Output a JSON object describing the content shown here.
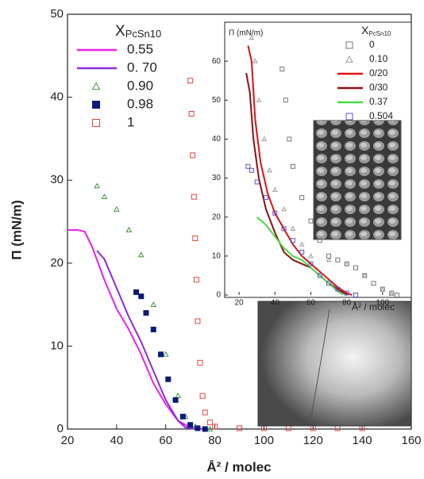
{
  "chart_data": [
    {
      "type": "line",
      "xlabel": "Å² / molec",
      "ylabel": "Π (mN/m)",
      "legend_title_symbol": "X",
      "legend_title_subscript": "PcSn10",
      "xlim": [
        20,
        160
      ],
      "xticks": [
        20,
        40,
        60,
        80,
        100,
        120,
        140,
        160
      ],
      "ylim": [
        0,
        50
      ],
      "yticks": [
        0,
        10,
        20,
        30,
        40,
        50
      ],
      "series": [
        {
          "name": "0.55",
          "color": "#ee1ee8",
          "style": "line",
          "x": [
            20,
            24,
            27,
            30,
            35,
            40,
            45,
            50,
            55,
            60,
            65,
            70,
            75
          ],
          "values": [
            24,
            24,
            23.8,
            22,
            18,
            14.5,
            12,
            9,
            5.5,
            3,
            1,
            0.2,
            0
          ]
        },
        {
          "name": "0. 70",
          "color": "#8a2be2",
          "style": "line",
          "x": [
            32,
            35,
            40,
            45,
            50,
            55,
            60,
            65,
            68,
            72
          ],
          "values": [
            21.5,
            20.5,
            17,
            13.5,
            10.5,
            7,
            3.5,
            1,
            0.2,
            0
          ]
        },
        {
          "name": "0.90",
          "color": "#3a9a3a",
          "style": "triangle",
          "x": [
            32,
            35,
            40,
            45,
            50,
            55,
            60,
            65,
            68,
            72,
            78
          ],
          "values": [
            29.3,
            28,
            26.5,
            24,
            21,
            15,
            9,
            4,
            1.5,
            0.3,
            0
          ]
        },
        {
          "name": "0.98",
          "color": "#0b1a78",
          "style": "square",
          "x": [
            48,
            50,
            52,
            55,
            58,
            61,
            64,
            67,
            70,
            73,
            76
          ],
          "values": [
            16.5,
            16,
            14,
            12,
            9,
            6,
            3.5,
            1.5,
            0.5,
            0.1,
            0
          ]
        },
        {
          "name": "1",
          "color": "#e8403a",
          "style": "open-square",
          "x": [
            70,
            70.5,
            71,
            71.5,
            72,
            72.5,
            73,
            74,
            75,
            76,
            78,
            80,
            90,
            100,
            110,
            120,
            130,
            140
          ],
          "values": [
            42,
            38,
            33,
            28,
            23,
            18,
            13,
            8,
            4,
            2,
            0.8,
            0.3,
            0.1,
            0.1,
            0.1,
            0.1,
            0.1,
            0.1
          ]
        }
      ]
    },
    {
      "type": "line",
      "xlabel": "Å² / molec",
      "ylabel": "Π (mN/m)",
      "legend_title_symbol": "X",
      "legend_title_subscript": "PcSn10",
      "xlim": [
        12,
        116
      ],
      "xticks": [
        20,
        40,
        60,
        80,
        100
      ],
      "ylim": [
        0,
        70
      ],
      "yticks": [
        0,
        10,
        20,
        30,
        40,
        50,
        60
      ],
      "series": [
        {
          "name": "0",
          "color": "#777777",
          "style": "open-square",
          "x": [
            44,
            46,
            48,
            50,
            55,
            60,
            65,
            70,
            75,
            80,
            85,
            90,
            95,
            100,
            105,
            108
          ],
          "values": [
            58,
            50,
            40,
            33,
            25,
            19,
            14,
            10,
            9,
            8,
            7,
            5,
            3,
            1.5,
            0.5,
            0
          ]
        },
        {
          "name": "0.10",
          "color": "#999999",
          "style": "open-triangle",
          "x": [
            27,
            29,
            31,
            34,
            37,
            40,
            45,
            50,
            55,
            60,
            70,
            80,
            90,
            100,
            105
          ],
          "values": [
            66,
            60,
            50,
            40,
            32,
            27,
            22,
            17,
            13,
            10,
            9,
            8,
            5,
            1.5,
            0.3
          ]
        },
        {
          "name": "0/20",
          "color": "#e01010",
          "style": "line",
          "x": [
            25,
            27,
            29,
            32,
            36,
            40,
            45,
            50,
            55,
            60,
            65,
            70,
            75,
            80,
            83
          ],
          "values": [
            64,
            60,
            45,
            34,
            26,
            21,
            17,
            13,
            10,
            8,
            6,
            4,
            2,
            0.5,
            0
          ]
        },
        {
          "name": "0/30",
          "color": "#8b1010",
          "style": "line",
          "x": [
            24,
            26,
            28,
            31,
            35,
            40,
            45,
            50,
            55,
            60,
            65,
            70,
            75,
            80
          ],
          "values": [
            57,
            52,
            40,
            30,
            22,
            16,
            11,
            9,
            8,
            7,
            5,
            3,
            1.5,
            0
          ]
        },
        {
          "name": "0.37",
          "color": "#44dd44",
          "style": "line",
          "x": [
            30,
            35,
            40,
            45,
            50,
            55,
            60,
            65,
            70,
            75,
            78
          ],
          "values": [
            20,
            18,
            15,
            12,
            10,
            9,
            7,
            5,
            3,
            1,
            0
          ]
        },
        {
          "name": "0.504",
          "color": "#5555cc",
          "style": "open-square",
          "x": [
            25,
            27,
            30,
            35,
            40,
            45,
            50,
            55,
            60,
            65,
            70,
            75,
            80,
            85
          ],
          "values": [
            33,
            32,
            29,
            25,
            21,
            17,
            14,
            11,
            8,
            5,
            3,
            1.5,
            0.5,
            0
          ]
        }
      ]
    }
  ]
}
